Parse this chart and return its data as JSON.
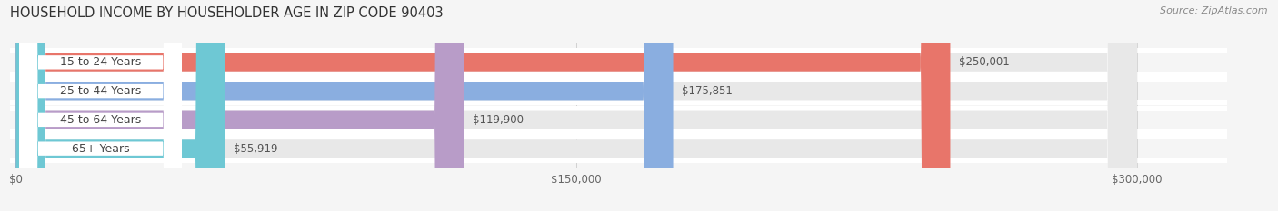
{
  "title": "HOUSEHOLD INCOME BY HOUSEHOLDER AGE IN ZIP CODE 90403",
  "source": "Source: ZipAtlas.com",
  "categories": [
    "15 to 24 Years",
    "25 to 44 Years",
    "45 to 64 Years",
    "65+ Years"
  ],
  "values": [
    250001,
    175851,
    119900,
    55919
  ],
  "bar_colors": [
    "#e8756a",
    "#8aaee0",
    "#b89cc8",
    "#6ec8d4"
  ],
  "bar_bg_color": "#e8e8e8",
  "x_max": 300000,
  "x_ticks": [
    0,
    150000,
    300000
  ],
  "x_tick_labels": [
    "$0",
    "$150,000",
    "$300,000"
  ],
  "value_labels": [
    "$250,001",
    "$175,851",
    "$119,900",
    "$55,919"
  ],
  "title_fontsize": 10.5,
  "source_fontsize": 8,
  "label_fontsize": 9,
  "value_fontsize": 8.5,
  "tick_fontsize": 8.5,
  "background_color": "#f5f5f5",
  "bar_height": 0.62,
  "label_bg_color": "#ffffff",
  "label_text_color": "#444444",
  "value_text_color": "#555555",
  "grid_color": "#cccccc",
  "bar_gap_color": "#ffffff"
}
